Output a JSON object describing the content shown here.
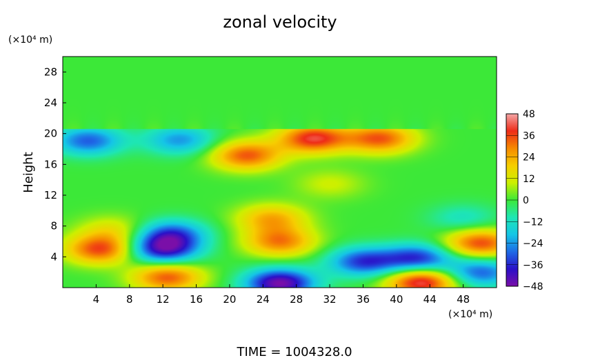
{
  "chart_data": {
    "type": "heatmap",
    "title": "zonal velocity",
    "ylabel": "Height",
    "x_unit": "(×10⁴ m)",
    "y_unit": "(×10⁴ m)",
    "xlim": [
      0,
      52
    ],
    "ylim": [
      0,
      30
    ],
    "x_ticks": [
      4,
      8,
      12,
      16,
      20,
      24,
      28,
      32,
      36,
      40,
      44,
      48
    ],
    "y_ticks": [
      4,
      8,
      12,
      16,
      20,
      24,
      28
    ],
    "colorbar": {
      "ticks": [
        48,
        36,
        24,
        12,
        0,
        -12,
        -24,
        -36,
        -48
      ],
      "range": [
        -48,
        48
      ],
      "colors": [
        "#7a0fa8",
        "#2a10c8",
        "#1e6ae6",
        "#15c6e6",
        "#1ee6b4",
        "#3ce838",
        "#ccf000",
        "#f6ce00",
        "#f68a00",
        "#ee2c18",
        "#f4a6a6"
      ]
    },
    "background_value": 0,
    "features": [
      {
        "x": 3,
        "y": 19.1,
        "value": -30
      },
      {
        "x": 14,
        "y": 19.2,
        "value": -24
      },
      {
        "x": 22,
        "y": 17.2,
        "value": 34
      },
      {
        "x": 30,
        "y": 19.4,
        "value": 40
      },
      {
        "x": 38,
        "y": 19.4,
        "value": 34
      },
      {
        "x": 13,
        "y": 7.0,
        "value": -30
      },
      {
        "x": 12,
        "y": 5.0,
        "value": -40
      },
      {
        "x": 26,
        "y": 6.0,
        "value": 30
      },
      {
        "x": 25,
        "y": 9.0,
        "value": 24
      },
      {
        "x": 4.5,
        "y": 5.0,
        "value": 36
      },
      {
        "x": 50,
        "y": 5.8,
        "value": 36
      },
      {
        "x": 12.5,
        "y": 1.4,
        "value": 34
      },
      {
        "x": 26,
        "y": 0.6,
        "value": -48
      },
      {
        "x": 43,
        "y": 0.8,
        "value": 44
      },
      {
        "x": 36,
        "y": 3.4,
        "value": -34
      },
      {
        "x": 42.5,
        "y": 3.8,
        "value": -36
      },
      {
        "x": 50,
        "y": 2.0,
        "value": -30
      },
      {
        "x": 6,
        "y": 7.5,
        "value": 14
      },
      {
        "x": 48,
        "y": 9.0,
        "value": -12
      },
      {
        "x": 32,
        "y": 13.5,
        "value": 10
      }
    ]
  },
  "footer": {
    "time_label": "TIME = 1004328.0"
  }
}
